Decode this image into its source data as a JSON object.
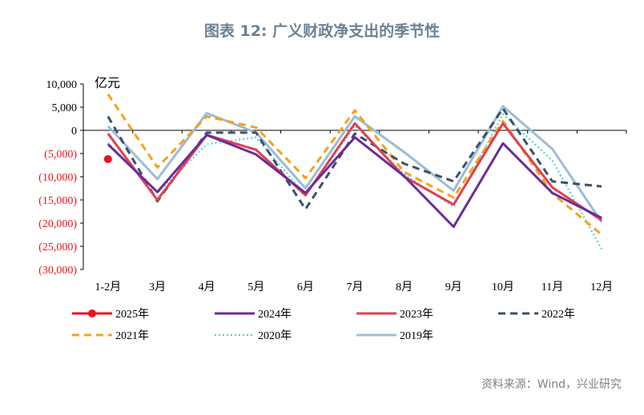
{
  "title": "图表 12: 广义财政净支出的季节性",
  "source": "资料来源：Wind，兴业研究",
  "chart_data": {
    "type": "line",
    "unit_label": "亿元",
    "categories": [
      "1-2月",
      "3月",
      "4月",
      "5月",
      "6月",
      "7月",
      "8月",
      "9月",
      "10月",
      "11月",
      "12月"
    ],
    "ylim": [
      -30000,
      10000
    ],
    "yticks": [
      10000,
      5000,
      0,
      -5000,
      -10000,
      -15000,
      -20000,
      -25000,
      -30000
    ],
    "ytick_labels": [
      "10,000",
      "5,000",
      "0",
      "(5,000)",
      "(10,000)",
      "(15,000)",
      "(20,000)",
      "(25,000)",
      "(30,000)"
    ],
    "grid": false,
    "legend_position": "bottom",
    "series": [
      {
        "name": "2025年",
        "color": "#e8141c",
        "style": "solid-marker",
        "values": [
          -6200,
          null,
          null,
          null,
          null,
          null,
          null,
          null,
          null,
          null,
          null
        ]
      },
      {
        "name": "2024年",
        "color": "#6a2c9b",
        "style": "solid",
        "values": [
          -3000,
          -13300,
          -1000,
          -5200,
          -13500,
          -1500,
          -9900,
          -20800,
          -2800,
          -13500,
          -18900
        ]
      },
      {
        "name": "2023年",
        "color": "#e04050",
        "style": "solid",
        "values": [
          -700,
          -15000,
          -1000,
          -4200,
          -14000,
          1500,
          -10000,
          -16000,
          1500,
          -12300,
          -19400
        ]
      },
      {
        "name": "2022年",
        "color": "#3d5066",
        "style": "dashed",
        "values": [
          3000,
          -15300,
          -500,
          -500,
          -17000,
          -700,
          -7200,
          -11000,
          4700,
          -11000,
          -12100
        ]
      },
      {
        "name": "2021年",
        "color": "#f5a21b",
        "style": "dashed",
        "values": [
          7800,
          -8000,
          3000,
          600,
          -10300,
          4300,
          -9000,
          -14500,
          2000,
          -13600,
          -22500
        ]
      },
      {
        "name": "2020年",
        "color": "#4fd6d6",
        "style": "dotted",
        "values": [
          -2700,
          -13500,
          -3000,
          -1500,
          -14000,
          1000,
          -9500,
          -16500,
          3500,
          -6500,
          -25600
        ]
      },
      {
        "name": "2019年",
        "color": "#9bbcd8",
        "style": "solid",
        "values": [
          900,
          -10500,
          3700,
          -500,
          -12500,
          3000,
          -4700,
          -13000,
          5200,
          -4000,
          -19800
        ]
      }
    ]
  }
}
